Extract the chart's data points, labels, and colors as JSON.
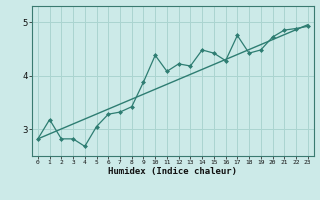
{
  "title": "",
  "xlabel": "Humidex (Indice chaleur)",
  "bg_color": "#cceae8",
  "line_color": "#2e7d72",
  "grid_color": "#aad4d0",
  "x_data": [
    0,
    1,
    2,
    3,
    4,
    5,
    6,
    7,
    8,
    9,
    10,
    11,
    12,
    13,
    14,
    15,
    16,
    17,
    18,
    19,
    20,
    21,
    22,
    23
  ],
  "y_data": [
    2.82,
    3.18,
    2.82,
    2.82,
    2.68,
    3.05,
    3.28,
    3.32,
    3.42,
    3.88,
    4.38,
    4.08,
    4.22,
    4.18,
    4.48,
    4.42,
    4.28,
    4.75,
    4.42,
    4.48,
    4.72,
    4.85,
    4.88,
    4.92
  ],
  "trend_x": [
    0,
    23
  ],
  "trend_y": [
    2.82,
    4.95
  ],
  "ylim": [
    2.5,
    5.3
  ],
  "xlim": [
    -0.5,
    23.5
  ],
  "yticks": [
    3,
    4,
    5
  ],
  "xticks": [
    0,
    1,
    2,
    3,
    4,
    5,
    6,
    7,
    8,
    9,
    10,
    11,
    12,
    13,
    14,
    15,
    16,
    17,
    18,
    19,
    20,
    21,
    22,
    23
  ]
}
